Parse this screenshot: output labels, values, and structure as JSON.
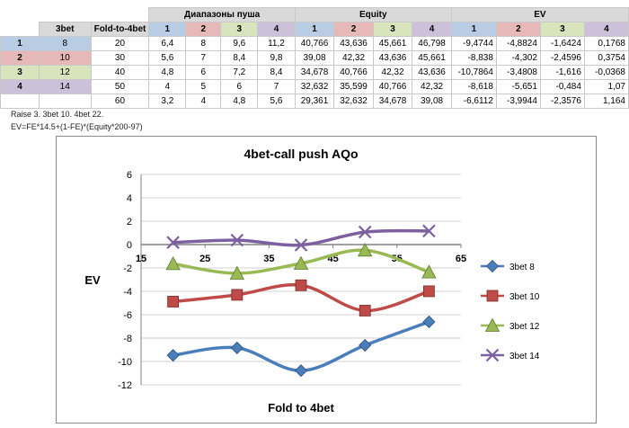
{
  "table": {
    "group_headers": {
      "ranges": "Диапазоны пуша",
      "equity": "Equity",
      "ev": "EV"
    },
    "col_headers": {
      "threebet": "3bet",
      "fold": "Fold-to-4bet",
      "n1": "1",
      "n2": "2",
      "n3": "3",
      "n4": "4"
    },
    "rows": [
      {
        "idx": "1",
        "bet": "8",
        "fold": "20",
        "ranges": [
          "6,4",
          "8",
          "9,6",
          "11,2"
        ],
        "equity": [
          "40,766",
          "43,636",
          "45,661",
          "46,798"
        ],
        "ev": [
          "-9,4744",
          "-4,8824",
          "-1,6424",
          "0,1768"
        ]
      },
      {
        "idx": "2",
        "bet": "10",
        "fold": "30",
        "ranges": [
          "5,6",
          "7",
          "8,4",
          "9,8"
        ],
        "equity": [
          "39,08",
          "42,32",
          "43,636",
          "45,661"
        ],
        "ev": [
          "-8,838",
          "-4,302",
          "-2,4596",
          "0,3754"
        ]
      },
      {
        "idx": "3",
        "bet": "12",
        "fold": "40",
        "ranges": [
          "4,8",
          "6",
          "7,2",
          "8,4"
        ],
        "equity": [
          "34,678",
          "40,766",
          "42,32",
          "43,636"
        ],
        "ev": [
          "-10,7864",
          "-3,4808",
          "-1,616",
          "-0,0368"
        ]
      },
      {
        "idx": "4",
        "bet": "14",
        "fold": "50",
        "ranges": [
          "4",
          "5",
          "6",
          "7"
        ],
        "equity": [
          "32,632",
          "35,599",
          "40,766",
          "42,32"
        ],
        "ev": [
          "-8,618",
          "-5,651",
          "-0,484",
          "1,07"
        ]
      },
      {
        "idx": "",
        "bet": "",
        "fold": "60",
        "ranges": [
          "3,2",
          "4",
          "4,8",
          "5,6"
        ],
        "equity": [
          "29,361",
          "32,632",
          "34,678",
          "39,08"
        ],
        "ev": [
          "-6,6112",
          "-3,9944",
          "-2,3576",
          "1,164"
        ]
      }
    ]
  },
  "notes": {
    "line1": "Raise 3. 3bet 10. 4bet 22.",
    "line2": "EV=FE*14.5+(1-FE)*(Equity*200-97)"
  },
  "colors": {
    "row_bg": [
      "#b8cce4",
      "#e6b8b7",
      "#d7e4bc",
      "#ccc0da"
    ],
    "header_gray": "#d9d9d9",
    "series": [
      "#4a7ebb",
      "#be4b48",
      "#98b954",
      "#7d60a0"
    ]
  },
  "chart_data": {
    "type": "line",
    "title": "4bet-call push AQo",
    "xlabel": "Fold to 4bet",
    "ylabel": "EV",
    "x": [
      20,
      30,
      40,
      50,
      60
    ],
    "xlim": [
      15,
      65
    ],
    "ylim": [
      -12,
      6
    ],
    "xticks": [
      15,
      25,
      35,
      45,
      55,
      65
    ],
    "yticks": [
      6,
      4,
      2,
      0,
      -2,
      -4,
      -6,
      -8,
      -10,
      -12
    ],
    "smooth": true,
    "series": [
      {
        "name": "3bet 8",
        "marker": "diamond",
        "values": [
          -9.4744,
          -8.838,
          -10.7864,
          -8.618,
          -6.6112
        ]
      },
      {
        "name": "3bet 10",
        "marker": "square",
        "values": [
          -4.8824,
          -4.302,
          -3.4808,
          -5.651,
          -3.9944
        ]
      },
      {
        "name": "3bet 12",
        "marker": "triangle",
        "values": [
          -1.6424,
          -2.4596,
          -1.616,
          -0.484,
          -2.3576
        ]
      },
      {
        "name": "3bet 14",
        "marker": "x",
        "values": [
          0.1768,
          0.3754,
          -0.0368,
          1.07,
          1.164
        ]
      }
    ]
  }
}
